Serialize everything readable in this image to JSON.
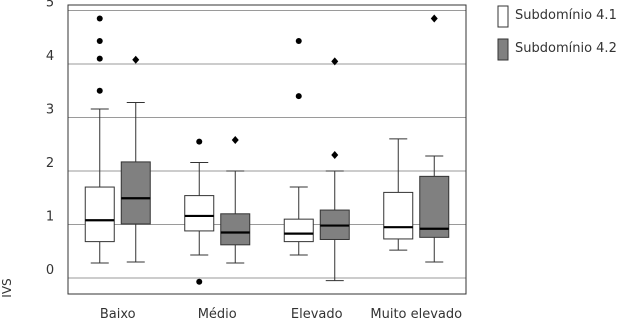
{
  "chart_data": {
    "type": "boxplot",
    "ylabel": "IVS",
    "ylim": [
      -0.3,
      5.05
    ],
    "yticks": [
      0,
      1,
      2,
      3,
      4,
      5
    ],
    "grid": true,
    "legend_position": "right",
    "categories": [
      "Baixo",
      "Médio",
      "Elevado",
      "Muito elevado"
    ],
    "series": [
      {
        "name": "Subdomínio 4.1",
        "color": "#ffffff",
        "marker": "circle",
        "boxes": [
          {
            "whisker_low": 0.28,
            "q1": 0.68,
            "median": 1.08,
            "q3": 1.7,
            "whisker_high": 3.16,
            "outliers": [
              3.5,
              4.1,
              4.43,
              4.85
            ]
          },
          {
            "whisker_low": 0.43,
            "q1": 0.88,
            "median": 1.16,
            "q3": 1.54,
            "whisker_high": 2.16,
            "outliers": [
              2.55,
              -0.07
            ]
          },
          {
            "whisker_low": 0.43,
            "q1": 0.68,
            "median": 0.83,
            "q3": 1.1,
            "whisker_high": 1.7,
            "outliers": [
              3.4,
              4.43
            ]
          },
          {
            "whisker_low": 0.52,
            "q1": 0.73,
            "median": 0.95,
            "q3": 1.6,
            "whisker_high": 2.6,
            "outliers": []
          }
        ]
      },
      {
        "name": "Subdomínio 4.2",
        "color": "#808080",
        "marker": "diamond",
        "boxes": [
          {
            "whisker_low": 0.3,
            "q1": 1.01,
            "median": 1.49,
            "q3": 2.17,
            "whisker_high": 3.28,
            "outliers": [
              4.08
            ]
          },
          {
            "whisker_low": 0.28,
            "q1": 0.62,
            "median": 0.85,
            "q3": 1.2,
            "whisker_high": 2.0,
            "outliers": [
              2.58
            ]
          },
          {
            "whisker_low": -0.05,
            "q1": 0.72,
            "median": 0.98,
            "q3": 1.27,
            "whisker_high": 2.0,
            "outliers": [
              2.3,
              4.05
            ]
          },
          {
            "whisker_low": 0.3,
            "q1": 0.76,
            "median": 0.92,
            "q3": 1.9,
            "whisker_high": 2.28,
            "outliers": [
              4.85
            ]
          }
        ]
      }
    ]
  }
}
